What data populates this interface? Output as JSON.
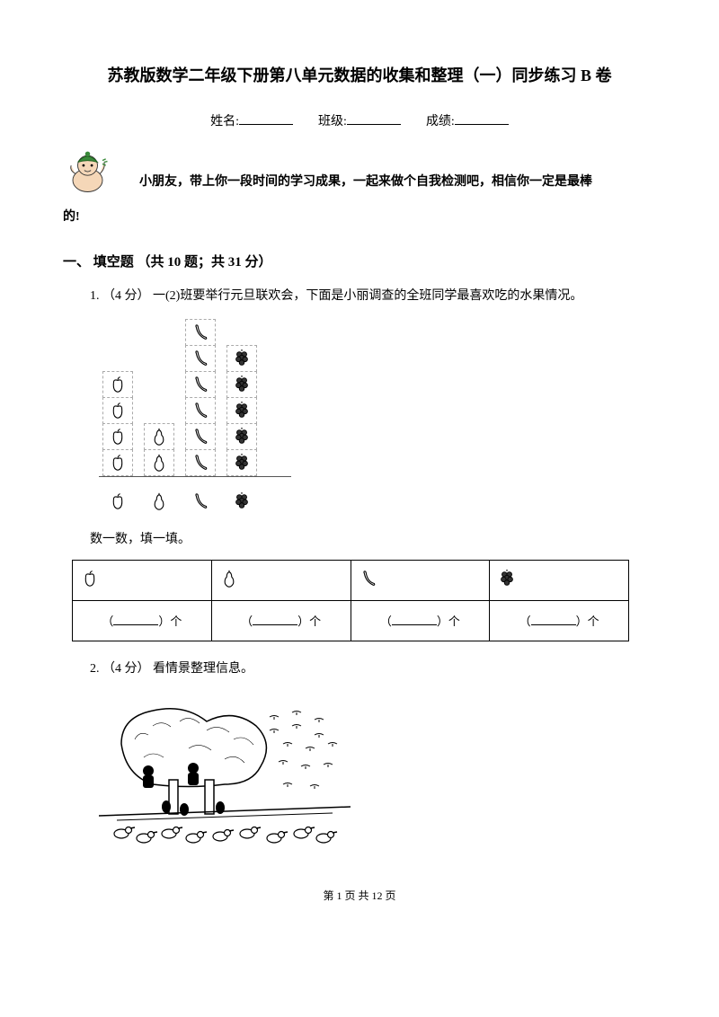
{
  "title": "苏教版数学二年级下册第八单元数据的收集和整理（一）同步练习 B 卷",
  "info": {
    "name_label": "姓名:",
    "class_label": "班级:",
    "score_label": "成绩:"
  },
  "intro": {
    "line1": "小朋友，带上你一段时间的学习成果，一起来做个自我检测吧，相信你一定是最棒",
    "line2": "的!"
  },
  "section1": {
    "header": "一、 填空题 （共 10 题；共 31 分）",
    "q1": {
      "text": "1. （4 分） 一(2)班要举行元旦联欢会，下面是小丽调查的全班同学最喜欢吃的水果情况。",
      "chart": {
        "columns": [
          {
            "icon": "apple",
            "count": 4
          },
          {
            "icon": "pear",
            "count": 2
          },
          {
            "icon": "banana",
            "count": 6
          },
          {
            "icon": "grape",
            "count": 5
          }
        ],
        "cell_border": "#aaaaaa",
        "axis_color": "#555555"
      },
      "sub": "数一数，填一填。",
      "table": {
        "icons": [
          "apple",
          "pear",
          "banana",
          "grape"
        ],
        "unit": "个"
      }
    },
    "q2": {
      "text": "2. （4 分） 看情景整理信息。"
    }
  },
  "footer": "第 1 页 共 12 页",
  "colors": {
    "text": "#000000",
    "bg": "#ffffff",
    "mascot_green": "#3a8a3a",
    "mascot_skin": "#f5d7b8"
  }
}
